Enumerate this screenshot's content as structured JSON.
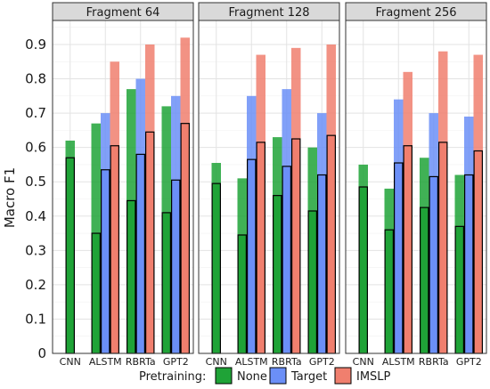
{
  "chart_data": {
    "type": "bar",
    "ylabel": "Macro F1",
    "xlabel": "",
    "ylim": [
      0,
      0.97
    ],
    "yticks": [
      0,
      0.1,
      0.2,
      0.3,
      0.4,
      0.5,
      0.6,
      0.7,
      0.8,
      0.9
    ],
    "grid": true,
    "legend": {
      "title": "Pretraining:",
      "position": "bottom",
      "entries": [
        {
          "name": "None",
          "color": "#1fa337"
        },
        {
          "name": "Target",
          "color": "#6b8ff7"
        },
        {
          "name": "IMSLP",
          "color": "#f07f6e"
        }
      ]
    },
    "categories": [
      "CNN",
      "ALSTM",
      "RBRTa",
      "GPT2"
    ],
    "panels": [
      {
        "title": "Fragment 64",
        "series": [
          {
            "name": "None",
            "values": [
              0.62,
              0.67,
              0.77,
              0.72
            ],
            "values_outlined": [
              0.57,
              0.35,
              0.445,
              0.41
            ]
          },
          {
            "name": "Target",
            "values": [
              null,
              0.7,
              0.8,
              0.75
            ],
            "values_outlined": [
              null,
              0.535,
              0.58,
              0.505
            ]
          },
          {
            "name": "IMSLP",
            "values": [
              null,
              0.85,
              0.9,
              0.92
            ],
            "values_outlined": [
              null,
              0.605,
              0.645,
              0.67
            ]
          }
        ]
      },
      {
        "title": "Fragment 128",
        "series": [
          {
            "name": "None",
            "values": [
              0.555,
              0.51,
              0.63,
              0.6
            ],
            "values_outlined": [
              0.495,
              0.345,
              0.46,
              0.415
            ]
          },
          {
            "name": "Target",
            "values": [
              null,
              0.75,
              0.77,
              0.7
            ],
            "values_outlined": [
              null,
              0.565,
              0.545,
              0.52
            ]
          },
          {
            "name": "IMSLP",
            "values": [
              null,
              0.87,
              0.89,
              0.9
            ],
            "values_outlined": [
              null,
              0.615,
              0.625,
              0.635
            ]
          }
        ]
      },
      {
        "title": "Fragment 256",
        "series": [
          {
            "name": "None",
            "values": [
              0.55,
              0.48,
              0.57,
              0.52
            ],
            "values_outlined": [
              0.485,
              0.36,
              0.425,
              0.37
            ]
          },
          {
            "name": "Target",
            "values": [
              null,
              0.74,
              0.7,
              0.69
            ],
            "values_outlined": [
              null,
              0.555,
              0.515,
              0.52
            ]
          },
          {
            "name": "IMSLP",
            "values": [
              null,
              0.82,
              0.88,
              0.87
            ],
            "values_outlined": [
              null,
              0.605,
              0.615,
              0.59
            ]
          }
        ]
      }
    ]
  }
}
